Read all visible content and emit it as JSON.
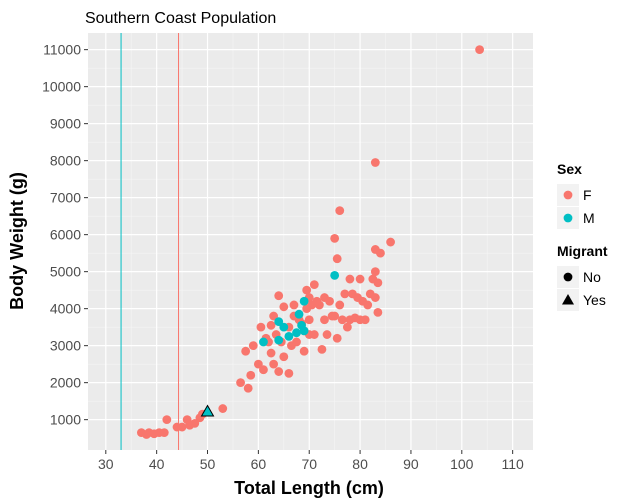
{
  "chart_data": {
    "type": "scatter",
    "title": "Southern Coast Population",
    "xlabel": "Total Length (cm)",
    "ylabel": "Body Weight (g)",
    "xlim": [
      26.5,
      114
    ],
    "ylim": [
      180,
      11450
    ],
    "xticks": [
      30,
      40,
      50,
      60,
      70,
      80,
      90,
      100,
      110
    ],
    "yticks": [
      1000,
      2000,
      3000,
      4000,
      5000,
      6000,
      7000,
      8000,
      9000,
      10000,
      11000
    ],
    "grid": true,
    "vlines": [
      {
        "x": 33,
        "color": "#00BFC4"
      },
      {
        "x": 44.3,
        "color": "#F8766D"
      }
    ],
    "colors": {
      "F": "#F8766D",
      "M": "#00BFC4"
    },
    "legend": {
      "placement": "right",
      "groups": [
        {
          "title": "Sex",
          "items": [
            {
              "label": "F",
              "color": "#F8766D",
              "shape": "circle"
            },
            {
              "label": "M",
              "color": "#00BFC4",
              "shape": "circle"
            }
          ]
        },
        {
          "title": "Migrant",
          "items": [
            {
              "label": "No",
              "color": "#000000",
              "shape": "circle"
            },
            {
              "label": "Yes",
              "color": "#000000",
              "shape": "triangle"
            }
          ]
        }
      ]
    },
    "series": [
      {
        "name": "F",
        "points": [
          [
            37,
            650
          ],
          [
            38,
            600
          ],
          [
            38.5,
            650
          ],
          [
            39.5,
            620
          ],
          [
            40.5,
            650
          ],
          [
            41.5,
            650
          ],
          [
            42,
            1000
          ],
          [
            44,
            800
          ],
          [
            45,
            800
          ],
          [
            46,
            1000
          ],
          [
            46.5,
            850
          ],
          [
            47.5,
            900
          ],
          [
            48.5,
            1050
          ],
          [
            49,
            1150
          ],
          [
            53,
            1300
          ],
          [
            56.5,
            2000
          ],
          [
            58,
            1850
          ],
          [
            58.5,
            2200
          ],
          [
            57.5,
            2850
          ],
          [
            59,
            3000
          ],
          [
            60,
            2500
          ],
          [
            61,
            2350
          ],
          [
            60.5,
            3500
          ],
          [
            61.5,
            3200
          ],
          [
            62,
            3100
          ],
          [
            62.5,
            2800
          ],
          [
            62.5,
            3550
          ],
          [
            63,
            2500
          ],
          [
            63,
            3800
          ],
          [
            63.5,
            3300
          ],
          [
            64,
            4350
          ],
          [
            64,
            2300
          ],
          [
            64.5,
            3100
          ],
          [
            65,
            4050
          ],
          [
            65,
            2700
          ],
          [
            66,
            3500
          ],
          [
            66,
            2250
          ],
          [
            66.5,
            3000
          ],
          [
            67,
            3800
          ],
          [
            67,
            4100
          ],
          [
            67.5,
            3100
          ],
          [
            68,
            3700
          ],
          [
            68.5,
            3600
          ],
          [
            69,
            2850
          ],
          [
            69,
            3400
          ],
          [
            69.5,
            4000
          ],
          [
            69.5,
            4500
          ],
          [
            70,
            4300
          ],
          [
            70,
            3700
          ],
          [
            70,
            3300
          ],
          [
            70.5,
            4100
          ],
          [
            71,
            4650
          ],
          [
            71,
            3300
          ],
          [
            71.5,
            4200
          ],
          [
            72,
            4100
          ],
          [
            72.5,
            2900
          ],
          [
            73,
            3700
          ],
          [
            73,
            4300
          ],
          [
            73.5,
            3300
          ],
          [
            74,
            4200
          ],
          [
            74.5,
            3800
          ],
          [
            75,
            3800
          ],
          [
            75,
            5900
          ],
          [
            75.5,
            3200
          ],
          [
            75.5,
            5350
          ],
          [
            76,
            4100
          ],
          [
            76,
            6650
          ],
          [
            76.5,
            3700
          ],
          [
            77,
            4400
          ],
          [
            77.5,
            3500
          ],
          [
            78,
            3700
          ],
          [
            78,
            4800
          ],
          [
            78.5,
            4400
          ],
          [
            79,
            3750
          ],
          [
            79.5,
            4300
          ],
          [
            80,
            3700
          ],
          [
            80,
            4800
          ],
          [
            80.5,
            4200
          ],
          [
            81,
            3700
          ],
          [
            81.5,
            4100
          ],
          [
            82,
            4400
          ],
          [
            82.5,
            4800
          ],
          [
            83,
            5000
          ],
          [
            83,
            5600
          ],
          [
            83,
            4300
          ],
          [
            83.5,
            3900
          ],
          [
            83.5,
            4700
          ],
          [
            84,
            5500
          ],
          [
            86,
            5800
          ],
          [
            83,
            7950
          ],
          [
            103.5,
            11000
          ]
        ]
      },
      {
        "name": "M",
        "points": [
          [
            61,
            3100
          ],
          [
            64,
            3150
          ],
          [
            64,
            3650
          ],
          [
            65,
            3500
          ],
          [
            66,
            3250
          ],
          [
            67.5,
            3350
          ],
          [
            68,
            3850
          ],
          [
            68.5,
            3550
          ],
          [
            69,
            3400
          ],
          [
            69,
            4200
          ],
          [
            75,
            4900
          ]
        ]
      }
    ],
    "migrants": [
      [
        50,
        1220
      ]
    ]
  }
}
